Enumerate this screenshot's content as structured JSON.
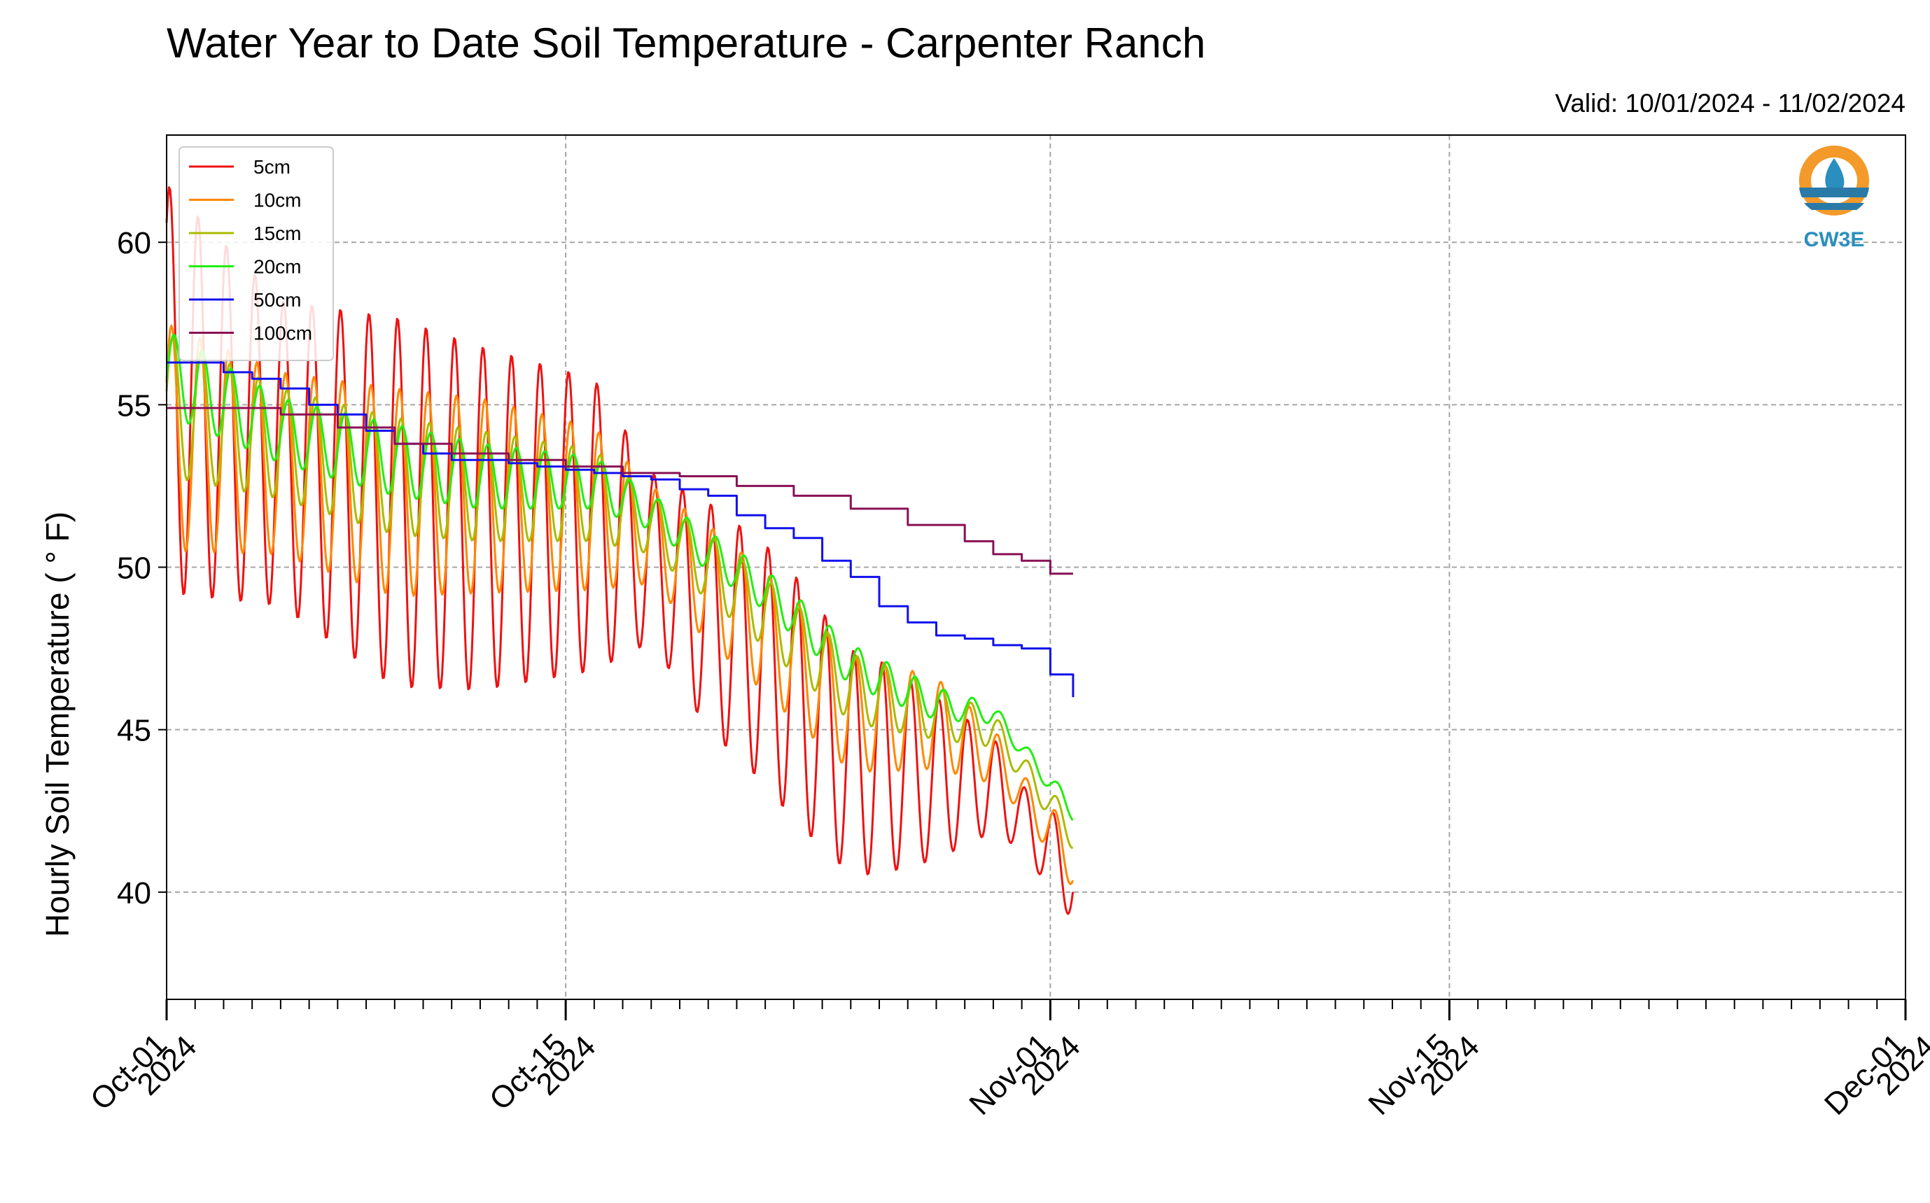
{
  "chart_data": {
    "type": "line",
    "title": "Water Year to Date Soil Temperature - Carpenter Ranch",
    "subtitle": "Valid: 10/01/2024 - 11/02/2024",
    "xlabel": "",
    "ylabel": "Hourly Soil Temperature ( ° F)",
    "x_range": [
      "2024-10-01",
      "2024-12-01"
    ],
    "ylim": [
      36.7,
      63.3
    ],
    "y_ticks": [
      40,
      45,
      50,
      55,
      60
    ],
    "x_ticks": [
      {
        "date": "2024-10-01",
        "label1": "Oct-01",
        "label2": "2024"
      },
      {
        "date": "2024-10-15",
        "label1": "Oct-15",
        "label2": "2024"
      },
      {
        "date": "2024-11-01",
        "label1": "Nov-01",
        "label2": "2024"
      },
      {
        "date": "2024-11-15",
        "label1": "Nov-15",
        "label2": "2024"
      },
      {
        "date": "2024-12-01",
        "label1": "Dec-01",
        "label2": "2024"
      }
    ],
    "grid": true,
    "legend_position": "top-left",
    "series": [
      {
        "name": "5cm",
        "color": "#ee1111",
        "style": "diurnal",
        "mean": [
          [
            1,
            55.5
          ],
          [
            5,
            53.5
          ],
          [
            9,
            52.0
          ],
          [
            12,
            51.5
          ],
          [
            16,
            51.3
          ],
          [
            18,
            50.3
          ],
          [
            20,
            48.5
          ],
          [
            22,
            47.0
          ],
          [
            25,
            44.0
          ],
          [
            28,
            43.5
          ],
          [
            30,
            43.3
          ],
          [
            32.8,
            40.5
          ]
        ],
        "amplitude": [
          [
            1,
            6.3
          ],
          [
            5,
            4.7
          ],
          [
            9,
            5.7
          ],
          [
            12,
            5.3
          ],
          [
            16,
            4.5
          ],
          [
            18,
            2.6
          ],
          [
            20,
            3.5
          ],
          [
            23,
            3.8
          ],
          [
            26,
            3.3
          ],
          [
            28,
            2.5
          ],
          [
            29.5,
            1.7
          ],
          [
            31,
            1.0
          ],
          [
            32.8,
            1.4
          ]
        ]
      },
      {
        "name": "10cm",
        "color": "#ff8800",
        "style": "diurnal",
        "lag": 0.07,
        "mean": [
          [
            1,
            54.0
          ],
          [
            5,
            53.2
          ],
          [
            9,
            52.3
          ],
          [
            12,
            52.2
          ],
          [
            16,
            51.8
          ],
          [
            18,
            51.0
          ],
          [
            20,
            49.5
          ],
          [
            22,
            48.0
          ],
          [
            25,
            45.5
          ],
          [
            28,
            45.2
          ],
          [
            30,
            44.2
          ],
          [
            32.8,
            41.0
          ]
        ],
        "amplitude": [
          [
            1,
            3.5
          ],
          [
            5,
            2.8
          ],
          [
            9,
            3.2
          ],
          [
            12,
            3.0
          ],
          [
            16,
            2.5
          ],
          [
            18,
            1.5
          ],
          [
            20,
            1.8
          ],
          [
            23,
            1.9
          ],
          [
            26,
            1.7
          ],
          [
            28,
            1.4
          ],
          [
            29.5,
            1.0
          ],
          [
            31,
            0.6
          ],
          [
            32.8,
            0.9
          ]
        ]
      },
      {
        "name": "15cm",
        "color": "#aabb00",
        "style": "diurnal",
        "lag": 0.12,
        "mean": [
          [
            1,
            55.0
          ],
          [
            5,
            53.8
          ],
          [
            9,
            52.8
          ],
          [
            12,
            52.5
          ],
          [
            16,
            52.2
          ],
          [
            18,
            51.3
          ],
          [
            20,
            50.0
          ],
          [
            22,
            48.6
          ],
          [
            25,
            46.3
          ],
          [
            28,
            45.5
          ],
          [
            30,
            45.0
          ],
          [
            32.8,
            41.8
          ]
        ],
        "amplitude": [
          [
            1,
            2.2
          ],
          [
            5,
            1.7
          ],
          [
            9,
            1.8
          ],
          [
            12,
            1.7
          ],
          [
            16,
            1.4
          ],
          [
            18,
            0.9
          ],
          [
            20,
            1.0
          ],
          [
            23,
            1.1
          ],
          [
            26,
            1.0
          ],
          [
            28,
            0.8
          ],
          [
            29.5,
            0.6
          ],
          [
            31,
            0.4
          ],
          [
            32.8,
            0.5
          ]
        ]
      },
      {
        "name": "20cm",
        "color": "#22ee11",
        "style": "diurnal",
        "lag": 0.17,
        "mean": [
          [
            1,
            56.0
          ],
          [
            5,
            54.2
          ],
          [
            9,
            53.3
          ],
          [
            12,
            52.8
          ],
          [
            16,
            52.6
          ],
          [
            18,
            51.7
          ],
          [
            20,
            50.5
          ],
          [
            22,
            49.3
          ],
          [
            25,
            47.0
          ],
          [
            28,
            45.8
          ],
          [
            30,
            45.5
          ],
          [
            32.8,
            42.5
          ]
        ],
        "amplitude": [
          [
            1,
            1.3
          ],
          [
            5,
            1.0
          ],
          [
            9,
            1.1
          ],
          [
            12,
            1.0
          ],
          [
            16,
            0.8
          ],
          [
            18,
            0.55
          ],
          [
            20,
            0.6
          ],
          [
            23,
            0.65
          ],
          [
            26,
            0.6
          ],
          [
            28,
            0.5
          ],
          [
            29.5,
            0.35
          ],
          [
            31,
            0.25
          ],
          [
            32.8,
            0.3
          ]
        ]
      },
      {
        "name": "50cm",
        "color": "#1111ee",
        "style": "points",
        "points": [
          [
            1,
            56.3
          ],
          [
            2,
            56.3
          ],
          [
            3,
            56.0
          ],
          [
            4,
            55.8
          ],
          [
            5,
            55.5
          ],
          [
            6,
            55.0
          ],
          [
            7,
            54.7
          ],
          [
            8,
            54.2
          ],
          [
            9,
            53.8
          ],
          [
            10,
            53.5
          ],
          [
            11,
            53.3
          ],
          [
            12,
            53.3
          ],
          [
            13,
            53.2
          ],
          [
            14,
            53.1
          ],
          [
            15,
            53.0
          ],
          [
            16,
            52.9
          ],
          [
            17,
            52.8
          ],
          [
            18,
            52.7
          ],
          [
            19,
            52.4
          ],
          [
            20,
            52.2
          ],
          [
            21,
            51.6
          ],
          [
            22,
            51.2
          ],
          [
            23,
            50.9
          ],
          [
            24,
            50.2
          ],
          [
            25,
            49.7
          ],
          [
            26,
            48.8
          ],
          [
            27,
            48.3
          ],
          [
            28,
            47.9
          ],
          [
            29,
            47.8
          ],
          [
            30,
            47.6
          ],
          [
            31,
            47.5
          ],
          [
            32,
            46.7
          ],
          [
            32.8,
            46.0
          ]
        ]
      },
      {
        "name": "100cm",
        "color": "#881155",
        "style": "points",
        "points": [
          [
            1,
            54.9
          ],
          [
            3,
            54.9
          ],
          [
            5,
            54.7
          ],
          [
            7,
            54.3
          ],
          [
            9,
            53.8
          ],
          [
            11,
            53.5
          ],
          [
            13,
            53.3
          ],
          [
            15,
            53.1
          ],
          [
            17,
            52.9
          ],
          [
            19,
            52.8
          ],
          [
            21,
            52.5
          ],
          [
            23,
            52.2
          ],
          [
            25,
            51.8
          ],
          [
            27,
            51.3
          ],
          [
            29,
            50.8
          ],
          [
            30,
            50.4
          ],
          [
            31,
            50.2
          ],
          [
            32,
            49.8
          ],
          [
            32.8,
            49.8
          ]
        ]
      }
    ]
  }
}
